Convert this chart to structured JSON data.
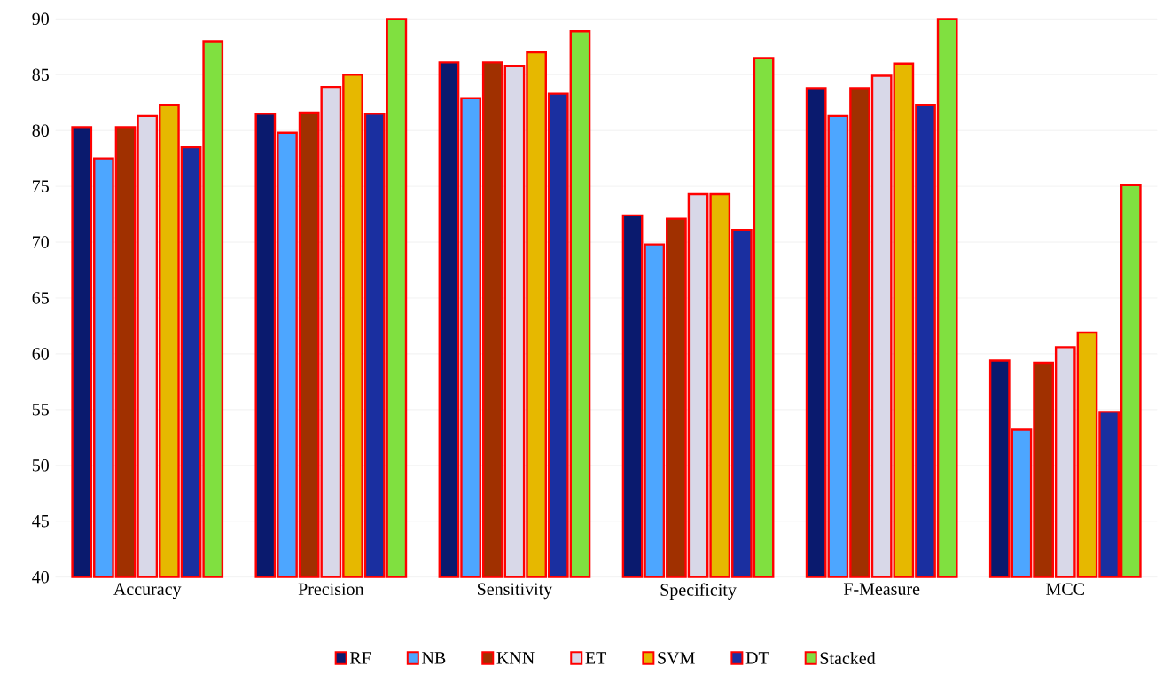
{
  "chart_data": {
    "type": "bar",
    "categories": [
      "Accuracy",
      "Precision",
      "Sensitivity",
      "Specificity",
      "F-Measure",
      "MCC"
    ],
    "series": [
      {
        "name": "RF",
        "color": "#0a1a6e",
        "values": [
          80.3,
          81.5,
          86.1,
          72.4,
          83.8,
          59.4
        ]
      },
      {
        "name": "NB",
        "color": "#4da6ff",
        "values": [
          77.5,
          79.8,
          82.9,
          69.8,
          81.3,
          53.2
        ]
      },
      {
        "name": "KNN",
        "color": "#a03000",
        "values": [
          80.3,
          81.6,
          86.1,
          72.1,
          83.8,
          59.2
        ]
      },
      {
        "name": "ET",
        "color": "#d8d8e8",
        "values": [
          81.3,
          83.9,
          85.8,
          74.3,
          84.9,
          60.6
        ]
      },
      {
        "name": "SVM",
        "color": "#e6b800",
        "values": [
          82.3,
          85.0,
          87.0,
          74.3,
          86.0,
          61.9
        ]
      },
      {
        "name": "DT",
        "color": "#1a2fa0",
        "values": [
          78.5,
          81.5,
          83.3,
          71.1,
          82.3,
          54.8
        ]
      },
      {
        "name": "Stacked",
        "color": "#80e040",
        "values": [
          88.0,
          90.0,
          88.9,
          86.5,
          90.0,
          75.1
        ]
      }
    ],
    "ylim": [
      40,
      90
    ],
    "yticks": [
      40,
      45,
      50,
      55,
      60,
      65,
      70,
      75,
      80,
      85,
      90
    ],
    "grid": "y",
    "legend": "bottom"
  }
}
